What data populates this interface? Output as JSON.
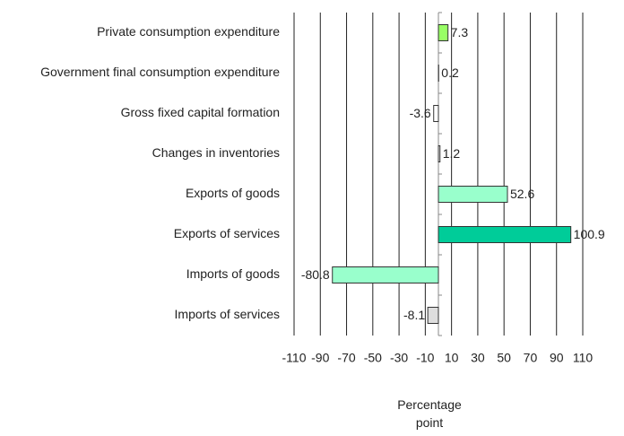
{
  "chart_data": {
    "type": "bar",
    "orientation": "horizontal",
    "categories": [
      "Private consumption expenditure",
      "Government final consumption expenditure",
      "Gross fixed capital formation",
      "Changes in inventories",
      "Exports of goods",
      "Exports of services",
      "Imports of goods",
      "Imports of services"
    ],
    "values": [
      7.3,
      0.2,
      -3.6,
      1.2,
      52.6,
      100.9,
      -80.8,
      -8.1
    ],
    "colors": [
      "#99ff66",
      "#ffffff",
      "#ffffff",
      "#ffffff",
      "#99ffcc",
      "#00cc99",
      "#99ffcc",
      "#dddddd"
    ],
    "xlim": [
      -110,
      110
    ],
    "xticks": [
      -110,
      -90,
      -70,
      -50,
      -30,
      -10,
      10,
      30,
      50,
      70,
      90,
      110
    ],
    "xlabel": "Percentage point",
    "grid": true
  }
}
